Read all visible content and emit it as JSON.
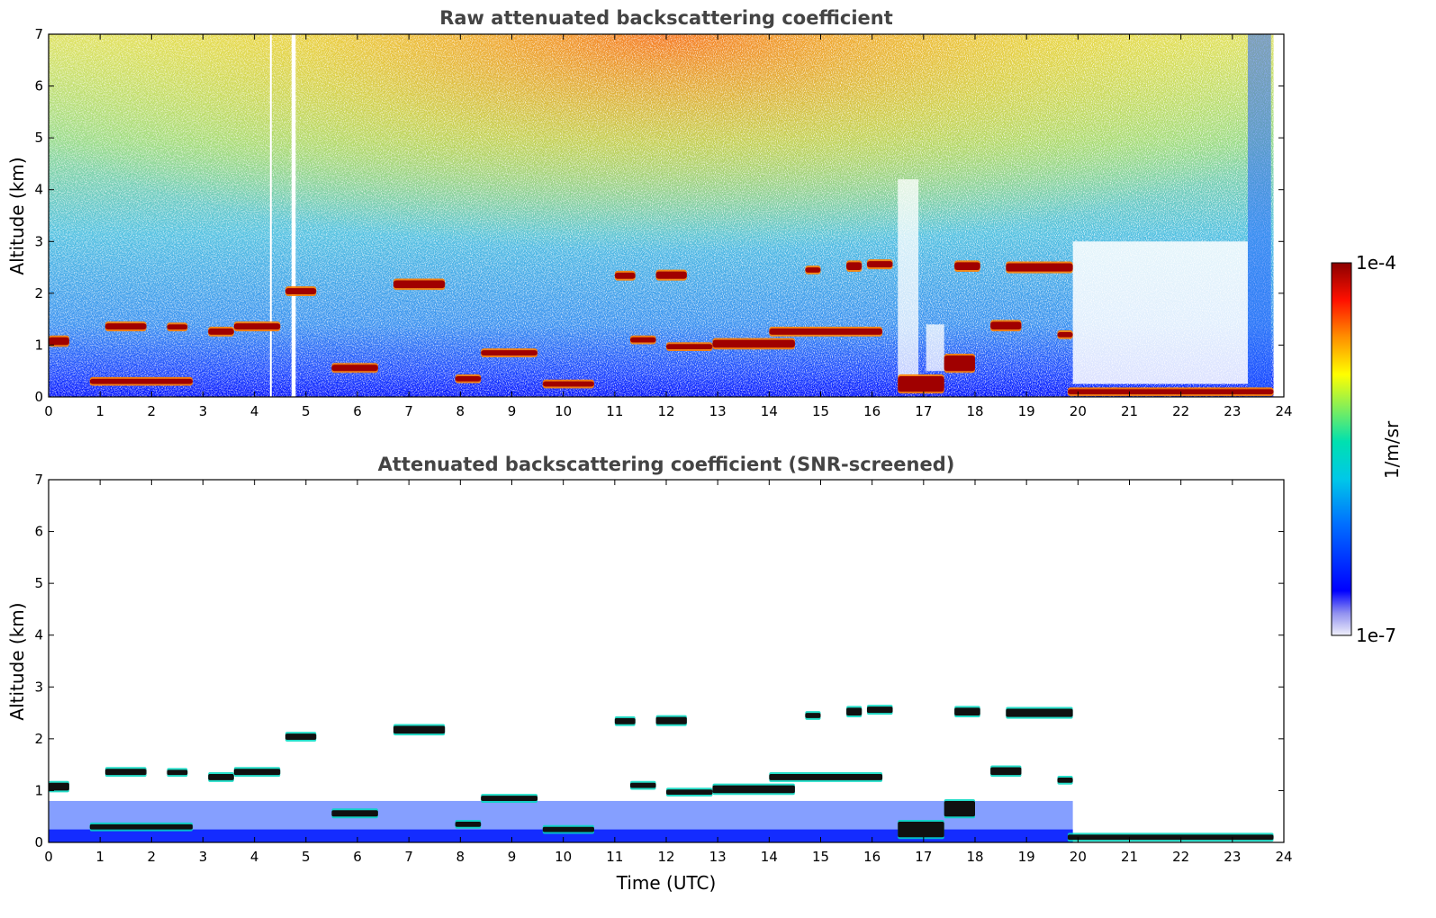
{
  "chart_data": [
    {
      "type": "heatmap",
      "title": "Raw attenuated backscattering coefficient",
      "xlabel": "",
      "ylabel": "Altitude (km)",
      "xlim": [
        0,
        24
      ],
      "ylim": [
        0,
        7
      ],
      "xticks": [
        "0",
        "1",
        "2",
        "3",
        "4",
        "5",
        "6",
        "7",
        "8",
        "9",
        "10",
        "11",
        "12",
        "13",
        "14",
        "15",
        "16",
        "17",
        "18",
        "19",
        "20",
        "21",
        "22",
        "23",
        "24"
      ],
      "yticks": [
        "0",
        "1",
        "2",
        "3",
        "4",
        "5",
        "6",
        "7"
      ],
      "cloud_layers": [
        {
          "t0": 0.0,
          "t1": 0.4,
          "z0": 1.0,
          "z1": 1.15
        },
        {
          "t0": 1.1,
          "t1": 1.9,
          "z0": 1.3,
          "z1": 1.42
        },
        {
          "t0": 2.3,
          "t1": 2.7,
          "z0": 1.3,
          "z1": 1.4
        },
        {
          "t0": 3.1,
          "t1": 3.6,
          "z0": 1.2,
          "z1": 1.32
        },
        {
          "t0": 3.6,
          "t1": 4.5,
          "z0": 1.3,
          "z1": 1.42
        },
        {
          "t0": 4.6,
          "t1": 5.2,
          "z0": 1.98,
          "z1": 2.1
        },
        {
          "t0": 6.7,
          "t1": 7.7,
          "z0": 2.1,
          "z1": 2.25
        },
        {
          "t0": 11.0,
          "t1": 11.4,
          "z0": 2.28,
          "z1": 2.4
        },
        {
          "t0": 11.8,
          "t1": 12.4,
          "z0": 2.28,
          "z1": 2.42
        },
        {
          "t0": 14.7,
          "t1": 15.0,
          "z0": 2.4,
          "z1": 2.5
        },
        {
          "t0": 15.5,
          "t1": 15.8,
          "z0": 2.45,
          "z1": 2.6
        },
        {
          "t0": 15.9,
          "t1": 16.4,
          "z0": 2.5,
          "z1": 2.62
        },
        {
          "t0": 17.6,
          "t1": 18.1,
          "z0": 2.45,
          "z1": 2.6
        },
        {
          "t0": 18.6,
          "t1": 19.9,
          "z0": 2.42,
          "z1": 2.58
        },
        {
          "t0": 5.5,
          "t1": 6.4,
          "z0": 0.5,
          "z1": 0.62
        },
        {
          "t0": 7.9,
          "t1": 8.4,
          "z0": 0.3,
          "z1": 0.4
        },
        {
          "t0": 8.4,
          "t1": 9.5,
          "z0": 0.8,
          "z1": 0.9
        },
        {
          "t0": 9.6,
          "t1": 10.6,
          "z0": 0.2,
          "z1": 0.3
        },
        {
          "t0": 11.3,
          "t1": 11.8,
          "z0": 1.05,
          "z1": 1.15
        },
        {
          "t0": 12.0,
          "t1": 12.9,
          "z0": 0.92,
          "z1": 1.02
        },
        {
          "t0": 12.9,
          "t1": 14.5,
          "z0": 0.95,
          "z1": 1.1
        },
        {
          "t0": 14.0,
          "t1": 16.2,
          "z0": 1.2,
          "z1": 1.32
        },
        {
          "t0": 18.3,
          "t1": 18.9,
          "z0": 1.3,
          "z1": 1.45
        },
        {
          "t0": 19.6,
          "t1": 19.9,
          "z0": 1.15,
          "z1": 1.25
        },
        {
          "t0": 0.8,
          "t1": 2.8,
          "z0": 0.25,
          "z1": 0.35
        },
        {
          "t0": 16.5,
          "t1": 17.4,
          "z0": 0.1,
          "z1": 0.4
        },
        {
          "t0": 17.4,
          "t1": 18.0,
          "z0": 0.5,
          "z1": 0.8
        },
        {
          "t0": 19.8,
          "t1": 23.8,
          "z0": 0.05,
          "z1": 0.15
        }
      ],
      "data_gaps": [
        {
          "t0": 4.72,
          "t1": 4.8
        },
        {
          "t0": 4.3,
          "t1": 4.33
        }
      ]
    },
    {
      "type": "heatmap",
      "title": "Attenuated backscattering coefficient (SNR-screened)",
      "xlabel": "Time (UTC)",
      "ylabel": "Altitude (km)",
      "xlim": [
        0,
        24
      ],
      "ylim": [
        0,
        7
      ],
      "xticks": [
        "0",
        "1",
        "2",
        "3",
        "4",
        "5",
        "6",
        "7",
        "8",
        "9",
        "10",
        "11",
        "12",
        "13",
        "14",
        "15",
        "16",
        "17",
        "18",
        "19",
        "20",
        "21",
        "22",
        "23",
        "24"
      ],
      "yticks": [
        "0",
        "1",
        "2",
        "3",
        "4",
        "5",
        "6",
        "7"
      ]
    }
  ],
  "colorbar": {
    "label": "1/m/sr",
    "max_label": "1e-4",
    "min_label": "1e-7",
    "colors": [
      "#e8e8f8",
      "#0000ff",
      "#00b0ff",
      "#00e0c0",
      "#a0f060",
      "#ffff00",
      "#ff8000",
      "#ff0000",
      "#8b0000"
    ]
  }
}
